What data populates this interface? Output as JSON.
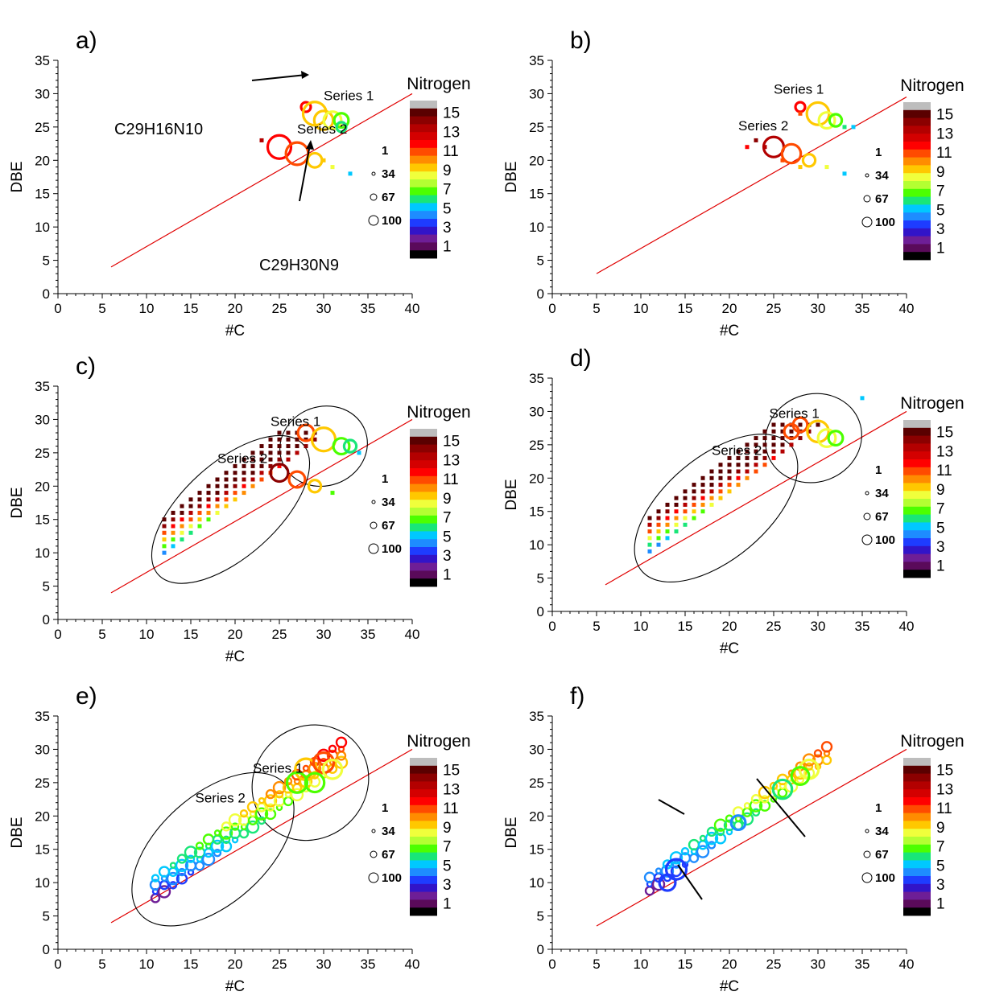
{
  "figure": {
    "colorbar_title": "Nitrogen",
    "colorbar_ticks": [
      "15",
      "13",
      "11",
      "9",
      "7",
      "5",
      "3",
      "1"
    ],
    "colorbar_colors": [
      "#bdbdbd",
      "#5a0000",
      "#8b0000",
      "#b30000",
      "#d40000",
      "#ff0000",
      "#ff4b00",
      "#ff8c00",
      "#ffc800",
      "#f0ff3c",
      "#b4ff32",
      "#4cff00",
      "#19e678",
      "#00c8ff",
      "#1e8cff",
      "#1e3cff",
      "#3214c8",
      "#6e1e96",
      "#5a0a5a",
      "#000000"
    ],
    "size_legend": [
      "1",
      "34",
      "67",
      "100"
    ],
    "xlabel": "#C",
    "ylabel": "DBE",
    "x_ticks": [
      "0",
      "5",
      "10",
      "15",
      "20",
      "25",
      "30",
      "35",
      "40"
    ],
    "y_ticks": [
      "0",
      "5",
      "10",
      "15",
      "20",
      "25",
      "30",
      "35"
    ],
    "molecule_labels": {
      "a_top_formula": "C29H16N10",
      "a_bottom_formula": "C29H30N9"
    }
  },
  "chart_data": [
    {
      "panel": "a)",
      "type": "scatter",
      "xlabel": "#C",
      "ylabel": "DBE",
      "xlim": [
        0,
        40
      ],
      "ylim": [
        0,
        35
      ],
      "reference_line": [
        [
          6,
          4
        ],
        [
          40,
          30
        ]
      ],
      "series_labels": [
        {
          "text": "Series 1",
          "x": 30,
          "y": 29
        },
        {
          "text": "Series 2",
          "x": 27,
          "y": 24
        }
      ],
      "points": [
        {
          "x": 28,
          "y": 28,
          "n": 12,
          "size": 10
        },
        {
          "x": 29,
          "y": 27,
          "n": 9,
          "size": 100
        },
        {
          "x": 30,
          "y": 26,
          "n": 9,
          "size": 60
        },
        {
          "x": 31,
          "y": 26,
          "n": 8,
          "size": 50
        },
        {
          "x": 32,
          "y": 26,
          "n": 7,
          "size": 30
        },
        {
          "x": 32,
          "y": 25,
          "n": 6,
          "size": 10
        },
        {
          "x": 23,
          "y": 23,
          "n": 13,
          "size": 8
        },
        {
          "x": 25,
          "y": 22,
          "n": 12,
          "size": 100
        },
        {
          "x": 27,
          "y": 21,
          "n": 11,
          "size": 90
        },
        {
          "x": 29,
          "y": 20,
          "n": 9,
          "size": 30
        },
        {
          "x": 30,
          "y": 20,
          "n": 9,
          "size": 3
        },
        {
          "x": 31,
          "y": 19,
          "n": 8,
          "size": 5
        },
        {
          "x": 33,
          "y": 18,
          "n": 5,
          "size": 2
        }
      ]
    },
    {
      "panel": "b)",
      "type": "scatter",
      "xlabel": "#C",
      "ylabel": "DBE",
      "xlim": [
        0,
        40
      ],
      "ylim": [
        0,
        35
      ],
      "reference_line": [
        [
          5,
          3
        ],
        [
          40,
          29.5
        ]
      ],
      "series_labels": [
        {
          "text": "Series 1",
          "x": 25,
          "y": 30
        },
        {
          "text": "Series 2",
          "x": 21,
          "y": 24.5
        }
      ],
      "points": [
        {
          "x": 28,
          "y": 28,
          "n": 12,
          "size": 10
        },
        {
          "x": 30,
          "y": 27,
          "n": 9,
          "size": 90
        },
        {
          "x": 31,
          "y": 26,
          "n": 8,
          "size": 40
        },
        {
          "x": 32,
          "y": 26,
          "n": 7,
          "size": 20
        },
        {
          "x": 33,
          "y": 25,
          "n": 6,
          "size": 5
        },
        {
          "x": 34,
          "y": 25,
          "n": 5,
          "size": 3
        },
        {
          "x": 23,
          "y": 23,
          "n": 14,
          "size": 5
        },
        {
          "x": 24,
          "y": 22,
          "n": 13,
          "size": 4
        },
        {
          "x": 25,
          "y": 22,
          "n": 13,
          "size": 70
        },
        {
          "x": 27,
          "y": 21,
          "n": 11,
          "size": 60
        },
        {
          "x": 29,
          "y": 20,
          "n": 9,
          "size": 20
        },
        {
          "x": 31,
          "y": 19,
          "n": 8,
          "size": 5
        },
        {
          "x": 33,
          "y": 18,
          "n": 5,
          "size": 2
        },
        {
          "x": 22,
          "y": 22,
          "n": 12,
          "size": 2
        },
        {
          "x": 26,
          "y": 20,
          "n": 11,
          "size": 2
        },
        {
          "x": 28,
          "y": 27,
          "n": 11,
          "size": 2
        },
        {
          "x": 28,
          "y": 19,
          "n": 9,
          "size": 2
        }
      ]
    },
    {
      "panel": "c)",
      "type": "scatter",
      "xlabel": "#C",
      "ylabel": "DBE",
      "xlim": [
        0,
        40
      ],
      "ylim": [
        0,
        35
      ],
      "reference_line": [
        [
          6,
          4
        ],
        [
          40,
          30
        ]
      ],
      "series_labels": [
        {
          "text": "Series 1",
          "x": 24,
          "y": 29
        },
        {
          "text": "Series 2",
          "x": 18,
          "y": 23.5
        }
      ],
      "groups": [
        {
          "label": "Series 1",
          "center": [
            30,
            26
          ],
          "rx": 5,
          "ry": 2.7,
          "rot": -20
        },
        {
          "label": "Series 2",
          "center": [
            19.5,
            16.5
          ],
          "rx": 11,
          "ry": 3.2,
          "rot": -42
        }
      ],
      "points": [
        {
          "x": 28,
          "y": 28,
          "n": 11,
          "size": 40
        },
        {
          "x": 30,
          "y": 27,
          "n": 9,
          "size": 100
        },
        {
          "x": 32,
          "y": 26,
          "n": 7,
          "size": 40
        },
        {
          "x": 33,
          "y": 26,
          "n": 6,
          "size": 20
        },
        {
          "x": 25,
          "y": 22,
          "n": 14,
          "size": 50
        },
        {
          "x": 27,
          "y": 21,
          "n": 11,
          "size": 40
        },
        {
          "x": 29,
          "y": 20,
          "n": 9,
          "size": 20
        },
        {
          "x": 31,
          "y": 19,
          "n": 7,
          "size": 5
        },
        {
          "x": 34,
          "y": 25,
          "n": 5,
          "size": 3
        }
      ],
      "grid_cloud": {
        "x_from": 12,
        "x_to": 29,
        "slope": 1,
        "rows": 6
      }
    },
    {
      "panel": "d)",
      "type": "scatter",
      "xlabel": "#C",
      "ylabel": "DBE",
      "xlim": [
        0,
        40
      ],
      "ylim": [
        0,
        35
      ],
      "reference_line": [
        [
          6,
          4
        ],
        [
          40,
          30
        ]
      ],
      "series_labels": [
        {
          "text": "Series 1",
          "x": 24.5,
          "y": 29
        },
        {
          "text": "Series 2",
          "x": 18,
          "y": 23.5
        }
      ],
      "groups": [
        {
          "label": "Series 1",
          "center": [
            29.5,
            26
          ],
          "rx": 5.5,
          "ry": 3,
          "rot": -20
        },
        {
          "label": "Series 2",
          "center": [
            18.5,
            15.5
          ],
          "rx": 11,
          "ry": 3.5,
          "rot": -40
        }
      ],
      "points": [
        {
          "x": 27,
          "y": 27,
          "n": 11,
          "size": 30
        },
        {
          "x": 28,
          "y": 28,
          "n": 11,
          "size": 30
        },
        {
          "x": 30,
          "y": 27,
          "n": 9,
          "size": 80
        },
        {
          "x": 31,
          "y": 26,
          "n": 8,
          "size": 50
        },
        {
          "x": 32,
          "y": 26,
          "n": 7,
          "size": 30
        },
        {
          "x": 35,
          "y": 32,
          "n": 5,
          "size": 1
        }
      ],
      "grid_cloud": {
        "x_from": 11,
        "x_to": 33,
        "slope": 1,
        "rows": 6
      }
    },
    {
      "panel": "e)",
      "type": "scatter",
      "xlabel": "#C",
      "ylabel": "DBE",
      "xlim": [
        0,
        40
      ],
      "ylim": [
        0,
        35
      ],
      "reference_line": [
        [
          6,
          4
        ],
        [
          40,
          30
        ]
      ],
      "series_labels": [
        {
          "text": "Series 1",
          "x": 22,
          "y": 26.5
        },
        {
          "text": "Series 2",
          "x": 15.5,
          "y": 22
        }
      ],
      "groups": [
        {
          "label": "Series 1",
          "center": [
            28.5,
            25
          ],
          "rx": 6.8,
          "ry": 3.8,
          "rot": -42
        },
        {
          "label": "Series 2",
          "center": [
            17.5,
            15
          ],
          "rx": 11,
          "ry": 3.7,
          "rot": -42
        }
      ],
      "points": [
        {
          "x": 28,
          "y": 27,
          "n": 9,
          "size": 80
        },
        {
          "x": 30,
          "y": 28,
          "n": 11,
          "size": 70
        },
        {
          "x": 31,
          "y": 27,
          "n": 8,
          "size": 60
        },
        {
          "x": 27,
          "y": 25,
          "n": 7,
          "size": 70
        },
        {
          "x": 29,
          "y": 25,
          "n": 7,
          "size": 60
        }
      ],
      "dense_band": {
        "x_from": 11,
        "x_to": 32,
        "slope": 0.97,
        "offset": -3,
        "width": 4
      }
    },
    {
      "panel": "f)",
      "type": "scatter",
      "xlabel": "#C",
      "ylabel": "DBE",
      "xlim": [
        0,
        40
      ],
      "ylim": [
        0,
        35
      ],
      "reference_line": [
        [
          5,
          3.5
        ],
        [
          40,
          30
        ]
      ],
      "points": [
        {
          "x": 14,
          "y": 12,
          "n": 3,
          "size": 70
        },
        {
          "x": 13,
          "y": 10,
          "n": 3,
          "size": 40
        },
        {
          "x": 21,
          "y": 19,
          "n": 4,
          "size": 30
        },
        {
          "x": 29,
          "y": 27,
          "n": 8,
          "size": 60
        },
        {
          "x": 28,
          "y": 26,
          "n": 7,
          "size": 50
        },
        {
          "x": 26,
          "y": 24,
          "n": 6,
          "size": 60
        }
      ],
      "dense_band": {
        "x_from": 11,
        "x_to": 31,
        "slope": 0.98,
        "offset": -2,
        "width": 3
      }
    }
  ]
}
